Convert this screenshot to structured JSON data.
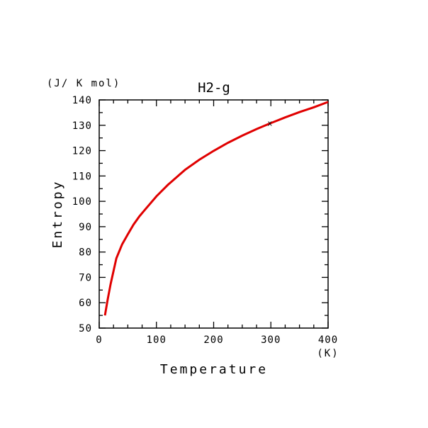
{
  "chart_data": {
    "type": "line",
    "title": "H2-g",
    "xlabel": "Temperature",
    "ylabel": "Entropy",
    "x_unit": "(K)",
    "y_unit": "(J/ K mol)",
    "xlim": [
      0,
      400
    ],
    "ylim": [
      50,
      140
    ],
    "x_ticks": [
      0,
      100,
      200,
      300,
      400
    ],
    "y_ticks": [
      50,
      60,
      70,
      80,
      90,
      100,
      110,
      120,
      130,
      140
    ],
    "grid": false,
    "series": [
      {
        "color": "#e00000",
        "x": [
          10,
          15,
          20,
          25,
          30,
          40,
          50,
          60,
          70,
          80,
          100,
          120,
          150,
          175,
          200,
          225,
          250,
          275,
          298.15,
          325,
          350,
          375,
          400
        ],
        "y": [
          55,
          61.5,
          67.5,
          72.5,
          77.5,
          83,
          87,
          90.8,
          94,
          96.7,
          102,
          106.5,
          112.4,
          116.4,
          119.9,
          123.1,
          125.9,
          128.5,
          130.7,
          133.1,
          135.2,
          137.1,
          139.2
        ]
      }
    ],
    "marker": {
      "label": "x",
      "x": 298.15,
      "y": 130.7
    }
  }
}
